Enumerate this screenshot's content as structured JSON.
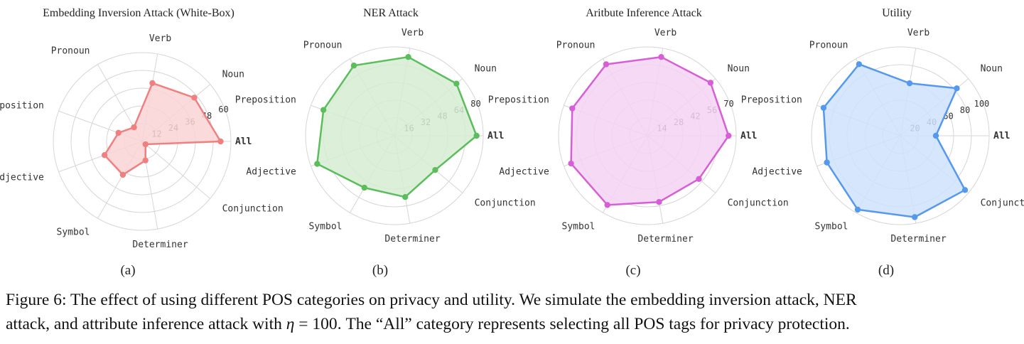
{
  "chart_data": [
    {
      "type": "radar",
      "title": "Embedding Inversion Attack (White-Box)",
      "sublabel": "(a)",
      "categories": [
        "All",
        "Noun",
        "Verb",
        "Pronoun",
        "Preposition",
        "Adjective",
        "Symbol",
        "Determiner",
        "Conjunction"
      ],
      "ticks": [
        "12",
        "24",
        "36",
        "48",
        "60"
      ],
      "rmax": 60,
      "values": [
        53,
        46,
        40,
        11,
        17,
        27,
        26,
        13,
        3
      ],
      "color": "#f08080",
      "fill": "#f9d3d3"
    },
    {
      "type": "radar",
      "title": "NER Attack",
      "sublabel": "(b)",
      "categories": [
        "All",
        "Noun",
        "Verb",
        "Pronoun",
        "Preposition",
        "Adjective",
        "Symbol",
        "Determiner",
        "Conjunction"
      ],
      "ticks": [
        "16",
        "32",
        "48",
        "64",
        "80"
      ],
      "rmax": 80,
      "values": [
        74,
        73,
        72,
        73,
        68,
        74,
        54,
        56,
        48
      ],
      "color": "#5bbd5b",
      "fill": "#d5ecd2"
    },
    {
      "type": "radar",
      "title": "Aritbute Inference Attack",
      "sublabel": "(c)",
      "categories": [
        "All",
        "Noun",
        "Verb",
        "Pronoun",
        "Preposition",
        "Adjective",
        "Symbol",
        "Determiner",
        "Conjunction"
      ],
      "ticks": [
        "14",
        "28",
        "42",
        "56",
        "70"
      ],
      "rmax": 70,
      "values": [
        64,
        65,
        63,
        65,
        63,
        64,
        63,
        53,
        53
      ],
      "color": "#d65fd6",
      "fill": "#f3d2f3"
    },
    {
      "type": "radar",
      "title": "Utility",
      "sublabel": "(d)",
      "categories": [
        "All",
        "Noun",
        "Verb",
        "Pronoun",
        "Preposition",
        "Adjective",
        "Symbol",
        "Determiner",
        "Conjunction"
      ],
      "ticks": [
        "20",
        "40",
        "60",
        "80",
        "100"
      ],
      "rmax": 100,
      "values": [
        40,
        83,
        60,
        93,
        92,
        88,
        96,
        93,
        95
      ],
      "color": "#5599ee",
      "fill": "#cfe2fb"
    }
  ],
  "caption": {
    "line1": "Figure 6: The effect of using different POS categories on privacy and utility. We simulate the embedding inversion attack, NER",
    "line2_before": "attack, and attribute inference attack with ",
    "line2_var": "η",
    "line2_eq": " = 100",
    "line2_after": ". The “All” category represents selecting all POS tags for privacy protection."
  }
}
